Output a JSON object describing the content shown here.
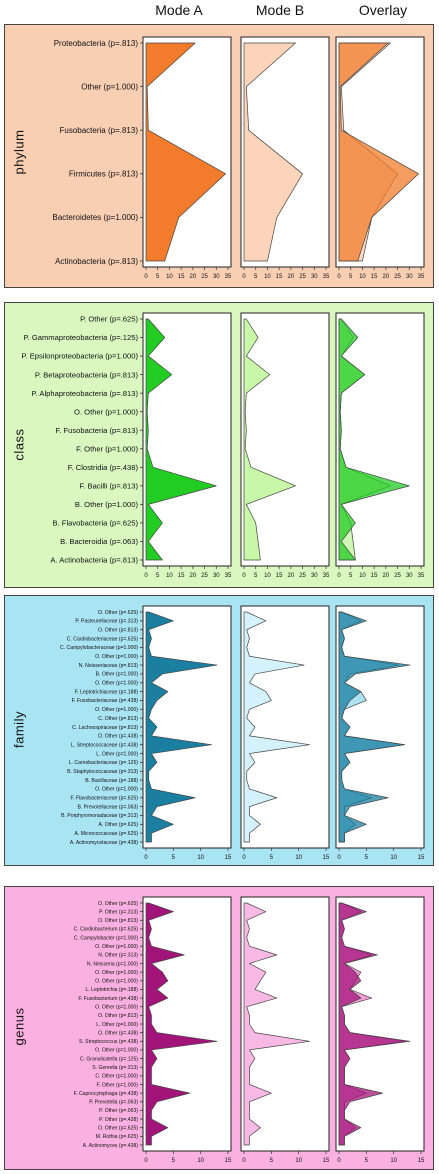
{
  "headers": {
    "mode_a": "Mode A",
    "mode_b": "Mode B",
    "overlay": "Overlay"
  },
  "chart_data": [
    {
      "type": "area",
      "title": "phylum",
      "background": "#f9cfb4",
      "colors": {
        "mode_a": "#f27c2c",
        "mode_b": "#fcd4ba",
        "overlay_a": "#f27c2c",
        "overlay_b": "#fcd4ba"
      },
      "categories": [
        "Proteobacteria (p=.813)",
        "Other (p=1.000)",
        "Fusobacteria (p=.813)",
        "Firmicutes (p=.813)",
        "Bacteroidetes (p=1.000)",
        "Actinobacteria (p=.813)"
      ],
      "xlim": [
        0,
        35
      ],
      "xticks": [
        "0",
        "5",
        "10",
        "15",
        "20",
        "25",
        "30",
        "35"
      ],
      "series": [
        {
          "values": [
            21,
            0.5,
            1,
            34,
            14,
            8
          ]
        },
        {
          "values": [
            22,
            1,
            2,
            25,
            14,
            10
          ]
        }
      ]
    },
    {
      "type": "area",
      "title": "class",
      "background": "#d9f7bf",
      "colors": {
        "mode_a": "#22cc22",
        "mode_b": "#c8f7a8",
        "overlay_a": "#22cc22",
        "overlay_b": "#c8f7a8"
      },
      "categories": [
        "P. Other (p=.625)",
        "P. Gammaproteobacteria (p=.125)",
        "P. Epsilonproteobacteria (p=1.000)",
        "P. Betaproteobacteria (p=.813)",
        "P. Alphaproteobacteria (p=.813)",
        "O. Other (p=1.000)",
        "F. Fusobacteria (p=.813)",
        "F. Other (p=1.000)",
        "F. Clostridia (p=.438)",
        "F. Bacilli (p=.813)",
        "B. Other (p=1.000)",
        "B. Flavobacteria (p=.625)",
        "B. Bacteroidia (p=.063)",
        "A. Actinobacteria (p=.813)"
      ],
      "xlim": [
        0,
        35
      ],
      "xticks": [
        "0",
        "5",
        "10",
        "15",
        "20",
        "25",
        "30",
        "35"
      ],
      "series": [
        {
          "values": [
            1,
            8,
            1,
            11,
            1,
            0.5,
            1,
            0.5,
            3,
            30,
            1,
            7,
            1,
            7
          ]
        },
        {
          "values": [
            1,
            6,
            1,
            11,
            1,
            0.5,
            1,
            0.5,
            3,
            22,
            1,
            5,
            6,
            7
          ]
        }
      ]
    },
    {
      "type": "area",
      "title": "family",
      "background": "#a9e4f3",
      "colors": {
        "mode_a": "#1a7fa0",
        "mode_b": "#d3f2fb",
        "overlay_a": "#1a7fa0",
        "overlay_b": "#9fdcef"
      },
      "categories": [
        "O. Other (p=.625)",
        "P. Pasteurellaceae (p=.313)",
        "O. Other (p=.813)",
        "C. Cardiobacteriaceae (p=.625)",
        "C. Campylobacteraceae (p=1.000)",
        "O. Other (p=1.000)",
        "N. Neisseriaceae (p=.813)",
        "B. Other (p=1.000)",
        "O. Other (p=1.000)",
        "F. Leptotrichiaceae (p=.188)",
        "F. Fusobacteriaceae (p=.438)",
        "O. Other (p=1.000)",
        "C. Other (p=.813)",
        "C. Lachnospiraceae (p=.813)",
        "O. Other (p=.438)",
        "L. Streptococcaceae (p=.438)",
        "L. Other (p=1.000)",
        "L. Carnobacteriaceae (p=.125)",
        "B. Staphylococcaceae (p=.313)",
        "B. Bacillaceae (p=.188)",
        "O. Other (p=1.000)",
        "F. Flavobacteriaceae (p=.625)",
        "B. Prevotellaceae (p=.063)",
        "B. Porphyromonadaceae (p=.313)",
        "A. Other (p=.625)",
        "A. Micrococcaceae (p=.625)",
        "A. Actinomycetaceae (p=.438)"
      ],
      "xlim": [
        0,
        15
      ],
      "xticks": [
        "0",
        "5",
        "10",
        "15"
      ],
      "series": [
        {
          "values": [
            0.5,
            5,
            0.5,
            1,
            0.5,
            1,
            13,
            3,
            1,
            4,
            2,
            1,
            0.5,
            2,
            1,
            12,
            1,
            2,
            0.5,
            0.5,
            1,
            9,
            2,
            1,
            5,
            1,
            1
          ]
        },
        {
          "values": [
            0.5,
            4,
            0.5,
            1,
            0.5,
            1,
            11,
            2,
            1,
            4,
            5,
            1,
            0.5,
            2,
            1,
            12,
            1,
            2,
            0.5,
            0.5,
            1,
            6,
            1,
            1,
            3,
            1,
            1
          ]
        }
      ]
    },
    {
      "type": "area",
      "title": "genus",
      "background": "#fab1e1",
      "colors": {
        "mode_a": "#a3147a",
        "mode_b": "#f8b9e4",
        "overlay_a": "#a3147a",
        "overlay_b": "#f08cd1"
      },
      "categories": [
        "O. Other (p=.625)",
        "P. Other (p=.313)",
        "O. Other (p=.813)",
        "C. Cardiobacterium (p=.625)",
        "C. Campylobacter (p=1.000)",
        "O. Other (p=1.000)",
        "N. Other (p=.313)",
        "N. Neisseria (p=1.000)",
        "O. Other (p=1.000)",
        "O. Other (p=1.000)",
        "L. Leptotrichia (p=.188)",
        "F. Fusobacterium (p=.438)",
        "O. Other (p=1.000)",
        "O. Other (p=.813)",
        "L. Other (p=1.000)",
        "O. Other (p=.438)",
        "S. Streptococcus (p=.438)",
        "O. Other (p=1.000)",
        "C. Granulicatella (p=.125)",
        "S. Gemella (p=.313)",
        "C. Other (p=1.000)",
        "F. Other (p=1.000)",
        "F. Capnocytophaga (p=.438)",
        "P. Prevotella (p=.063)",
        "P. Other (p=.063)",
        "P. Other (p=.438)",
        "O. Other (p=.625)",
        "M. Rothia (p=.625)",
        "A. Actinomyces (p=.438)"
      ],
      "xlim": [
        0,
        15
      ],
      "xticks": [
        "0",
        "5",
        "10",
        "15"
      ],
      "series": [
        {
          "values": [
            0.5,
            5,
            0.5,
            1,
            0.5,
            1,
            7,
            1,
            3,
            4,
            2,
            4,
            0.5,
            1,
            1,
            2,
            13,
            1,
            2,
            1,
            1,
            1,
            8,
            2,
            1,
            1,
            4,
            1,
            1
          ]
        },
        {
          "values": [
            0.5,
            4,
            0.5,
            1,
            0.5,
            1,
            6,
            1,
            4,
            3,
            2,
            6,
            0.5,
            1,
            1,
            2,
            12,
            1,
            2,
            1,
            1,
            1,
            5,
            1,
            1,
            1,
            3,
            1,
            1
          ]
        }
      ]
    }
  ]
}
